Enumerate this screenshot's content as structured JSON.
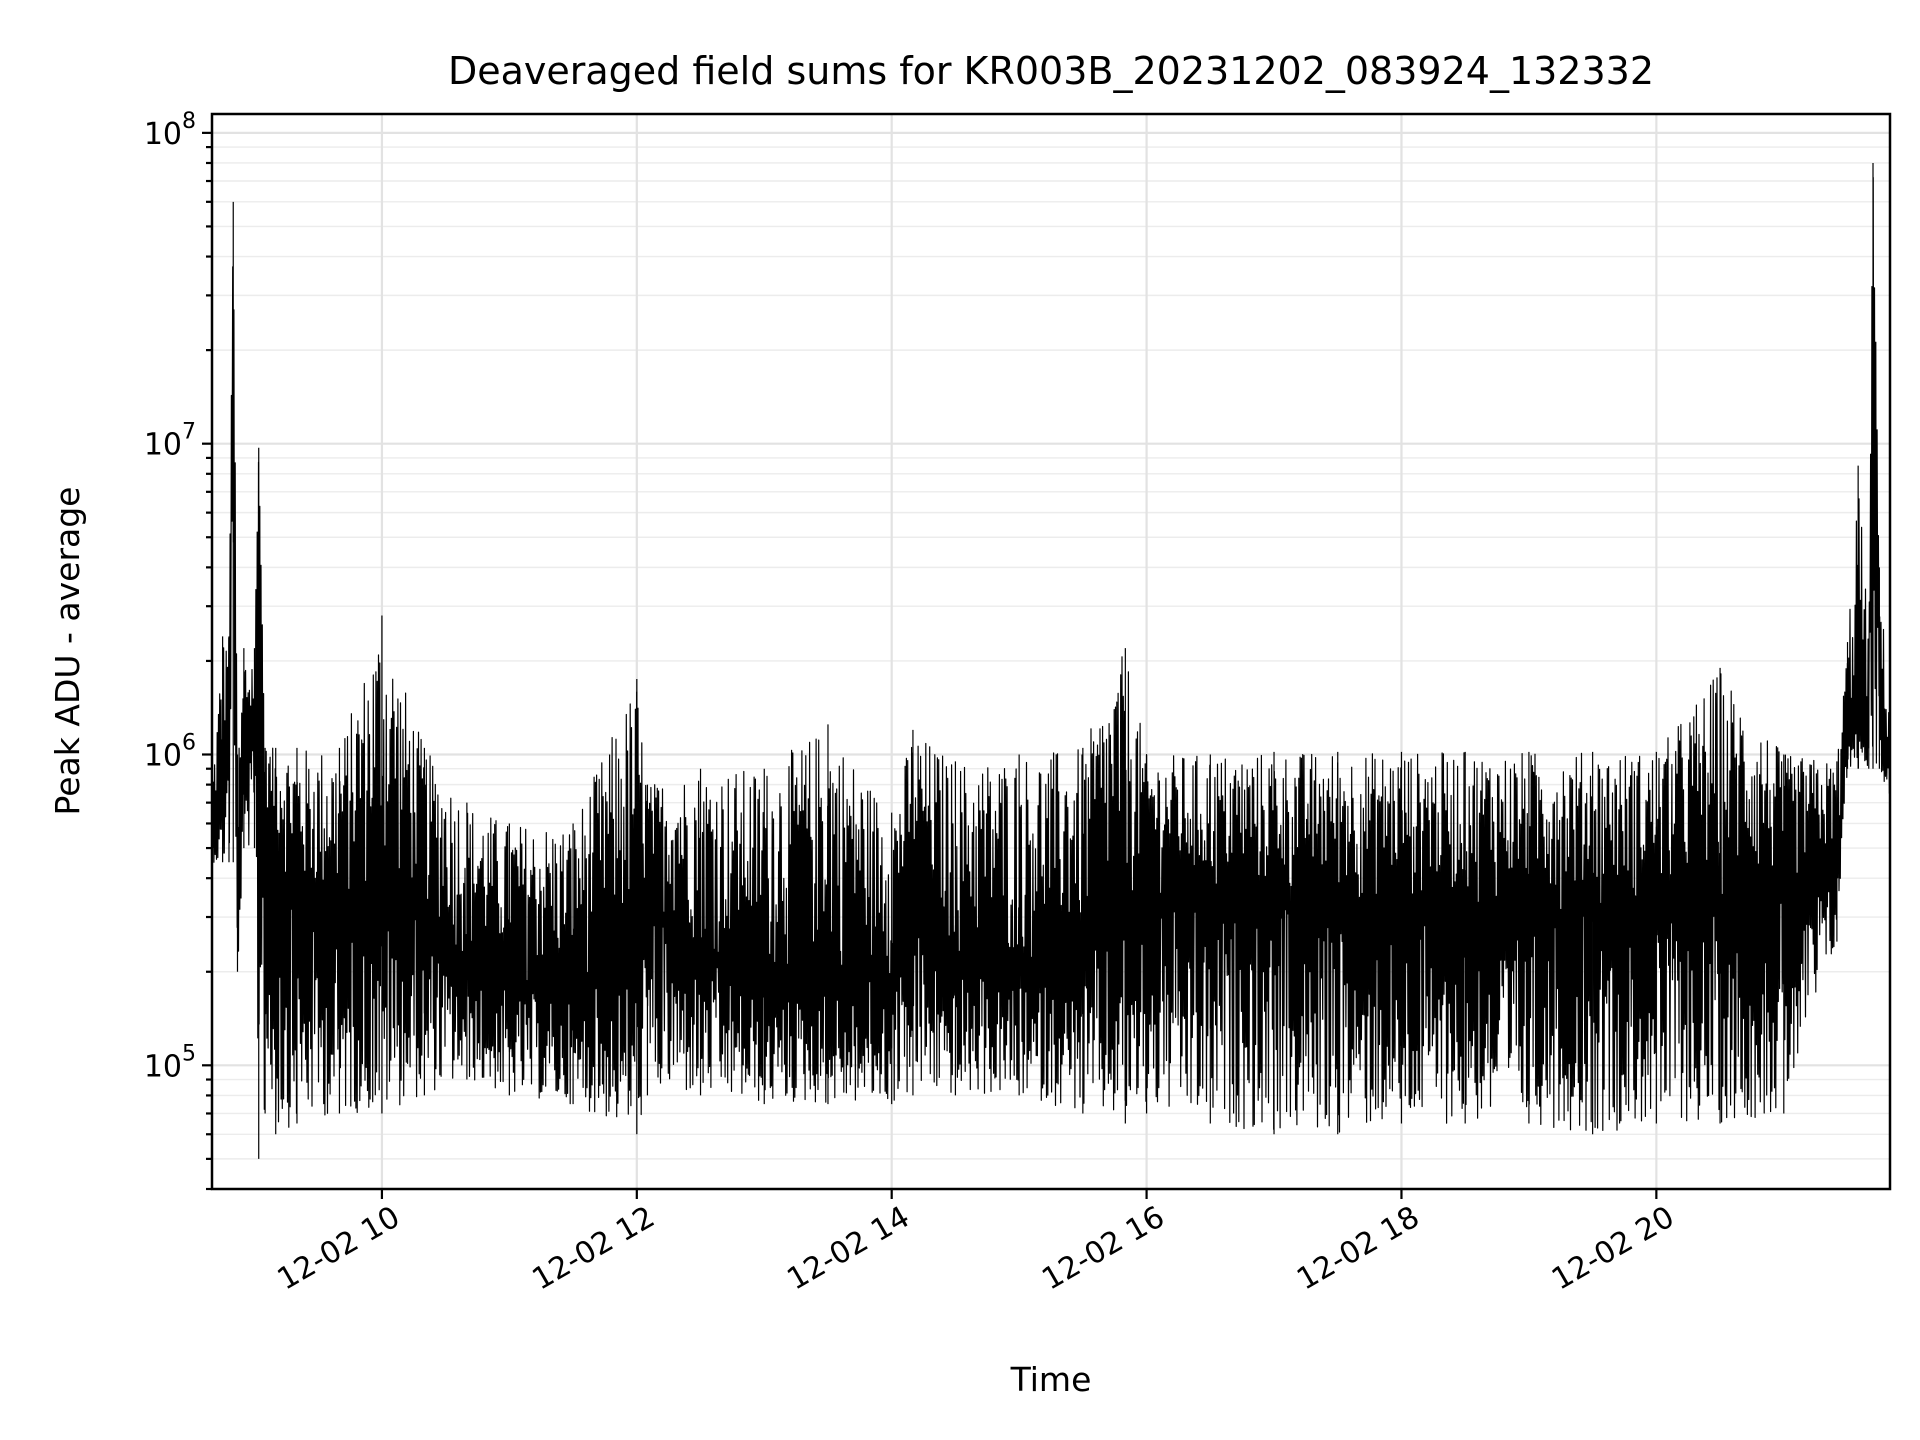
{
  "chart_data": {
    "type": "line",
    "title": "Deaveraged field sums for KR003B_20231202_083924_132332",
    "xlabel": "Time",
    "ylabel": "Peak ADU - average",
    "yscale": "log",
    "ylim": [
      40000,
      115000000
    ],
    "xlim": [
      "2023-12-02 08:40",
      "2023-12-02 21:50"
    ],
    "grid": true,
    "legend": "none",
    "x_ticks": [
      {
        "value": "2023-12-02 10:00",
        "label": "12-02 10"
      },
      {
        "value": "2023-12-02 12:00",
        "label": "12-02 12"
      },
      {
        "value": "2023-12-02 14:00",
        "label": "12-02 14"
      },
      {
        "value": "2023-12-02 16:00",
        "label": "12-02 16"
      },
      {
        "value": "2023-12-02 18:00",
        "label": "12-02 18"
      },
      {
        "value": "2023-12-02 20:00",
        "label": "12-02 20"
      }
    ],
    "y_ticks": [
      {
        "value": 100000,
        "base": "10",
        "exp": "5"
      },
      {
        "value": 1000000,
        "base": "10",
        "exp": "6"
      },
      {
        "value": 10000000,
        "base": "10",
        "exp": "7"
      },
      {
        "value": 100000000,
        "base": "10",
        "exp": "8"
      }
    ],
    "series_color": "#000000",
    "series": [
      {
        "x": [
          "2023-12-02 08:40",
          "2023-12-02 08:45",
          "2023-12-02 08:48",
          "2023-12-02 08:50",
          "2023-12-02 08:52",
          "2023-12-02 08:55",
          "2023-12-02 09:00",
          "2023-12-02 09:02",
          "2023-12-02 09:05",
          "2023-12-02 09:10",
          "2023-12-02 09:20",
          "2023-12-02 09:40",
          "2023-12-02 10:00",
          "2023-12-02 10:20",
          "2023-12-02 10:40",
          "2023-12-02 11:00",
          "2023-12-02 11:30",
          "2023-12-02 12:00",
          "2023-12-02 12:05",
          "2023-12-02 12:30",
          "2023-12-02 13:00",
          "2023-12-02 13:30",
          "2023-12-02 14:00",
          "2023-12-02 14:10",
          "2023-12-02 14:30",
          "2023-12-02 15:00",
          "2023-12-02 15:30",
          "2023-12-02 15:50",
          "2023-12-02 16:00",
          "2023-12-02 16:30",
          "2023-12-02 17:00",
          "2023-12-02 17:30",
          "2023-12-02 18:00",
          "2023-12-02 18:30",
          "2023-12-02 19:00",
          "2023-12-02 19:30",
          "2023-12-02 20:00",
          "2023-12-02 20:30",
          "2023-12-02 21:00",
          "2023-12-02 21:25",
          "2023-12-02 21:30",
          "2023-12-02 21:35",
          "2023-12-02 21:40",
          "2023-12-02 21:42",
          "2023-12-02 21:45",
          "2023-12-02 21:50"
        ],
        "y": [
          550000,
          700000,
          2000000,
          58000000,
          220000,
          900000,
          1100000,
          9500000,
          700000,
          500000,
          300000,
          280000,
          350000,
          300000,
          200000,
          180000,
          170000,
          230000,
          350000,
          220000,
          180000,
          190000,
          190000,
          350000,
          200000,
          190000,
          220000,
          300000,
          350000,
          320000,
          330000,
          320000,
          320000,
          330000,
          310000,
          320000,
          320000,
          320000,
          350000,
          450000,
          1200000,
          1300000,
          1400000,
          75000000,
          1500000,
          900000
        ],
        "y_min": [
          450000,
          450000,
          450000,
          450000,
          200000,
          500000,
          500000,
          50000,
          70000,
          60000,
          65000,
          70000,
          70000,
          80000,
          90000,
          80000,
          75000,
          60000,
          80000,
          80000,
          75000,
          75000,
          75000,
          80000,
          80000,
          80000,
          70000,
          65000,
          70000,
          65000,
          60000,
          60000,
          65000,
          65000,
          65000,
          60000,
          65000,
          65000,
          70000,
          250000,
          900000,
          900000,
          900000,
          900000,
          900000,
          700000
        ],
        "y_max": [
          800000,
          2400000,
          2400000,
          60000000,
          1000000,
          2200000,
          2200000,
          9700000,
          1050000,
          1050000,
          1050000,
          1050000,
          2800000,
          1050000,
          700000,
          600000,
          600000,
          1750000,
          800000,
          900000,
          900000,
          1250000,
          650000,
          1200000,
          950000,
          1000000,
          1050000,
          2200000,
          1000000,
          1000000,
          1020000,
          1020000,
          1020000,
          1020000,
          1020000,
          1020000,
          1020000,
          1900000,
          1000000,
          950000,
          2300000,
          8500000,
          2300000,
          80000000,
          4000000,
          1300000
        ]
      }
    ]
  }
}
